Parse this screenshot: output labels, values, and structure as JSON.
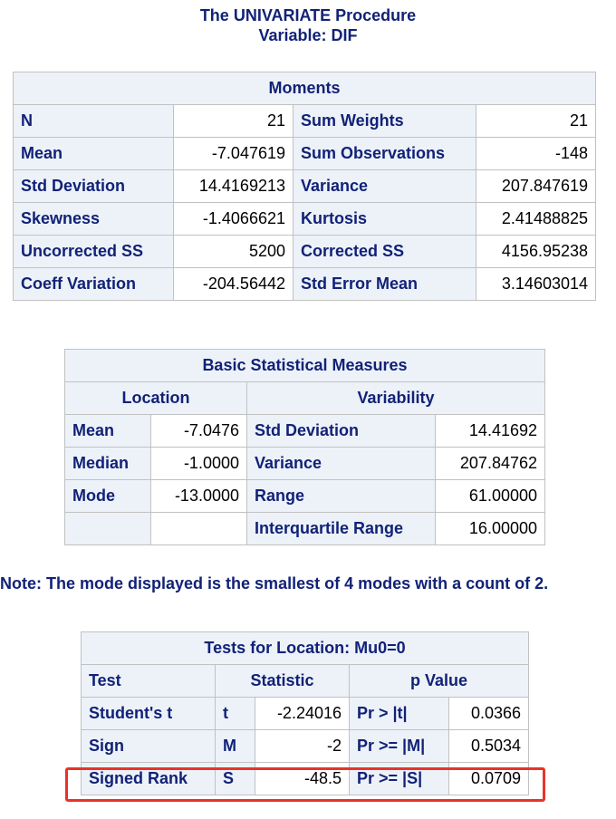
{
  "header": {
    "procedure": "The UNIVARIATE Procedure",
    "variable": "Variable: DIF"
  },
  "moments": {
    "title": "Moments",
    "rows": [
      {
        "l1": "N",
        "v1": "21",
        "l2": "Sum Weights",
        "v2": "21"
      },
      {
        "l1": "Mean",
        "v1": "-7.047619",
        "l2": "Sum Observations",
        "v2": "-148"
      },
      {
        "l1": "Std Deviation",
        "v1": "14.4169213",
        "l2": "Variance",
        "v2": "207.847619"
      },
      {
        "l1": "Skewness",
        "v1": "-1.4066621",
        "l2": "Kurtosis",
        "v2": "2.41488825"
      },
      {
        "l1": "Uncorrected SS",
        "v1": "5200",
        "l2": "Corrected SS",
        "v2": "4156.95238"
      },
      {
        "l1": "Coeff Variation",
        "v1": "-204.56442",
        "l2": "Std Error Mean",
        "v2": "3.14603014"
      }
    ]
  },
  "basic": {
    "title": "Basic Statistical Measures",
    "location_header": "Location",
    "variability_header": "Variability",
    "rows": [
      {
        "l1": "Mean",
        "v1": "-7.0476",
        "l2": "Std Deviation",
        "v2": "14.41692"
      },
      {
        "l1": "Median",
        "v1": "-1.0000",
        "l2": "Variance",
        "v2": "207.84762"
      },
      {
        "l1": "Mode",
        "v1": "-13.0000",
        "l2": "Range",
        "v2": "61.00000"
      },
      {
        "l1": "",
        "v1": "",
        "l2": "Interquartile Range",
        "v2": "16.00000"
      }
    ]
  },
  "note": "Note: The mode displayed is the smallest of 4 modes with a count of 2.",
  "tests": {
    "title": "Tests for Location: Mu0=0",
    "headers": {
      "test": "Test",
      "statistic": "Statistic",
      "pvalue": "p Value"
    },
    "rows": [
      {
        "test": "Student's t",
        "sym": "t",
        "stat": "-2.24016",
        "plabel": "Pr > |t|",
        "p": "0.0366"
      },
      {
        "test": "Sign",
        "sym": "M",
        "stat": "-2",
        "plabel": "Pr >= |M|",
        "p": "0.5034"
      },
      {
        "test": "Signed Rank",
        "sym": "S",
        "stat": "-48.5",
        "plabel": "Pr >= |S|",
        "p": "0.0709"
      }
    ]
  },
  "colors": {
    "header_bg": "#edf2f9",
    "header_text": "#112277",
    "border": "#c1c1c1",
    "highlight": "#e8332a"
  }
}
